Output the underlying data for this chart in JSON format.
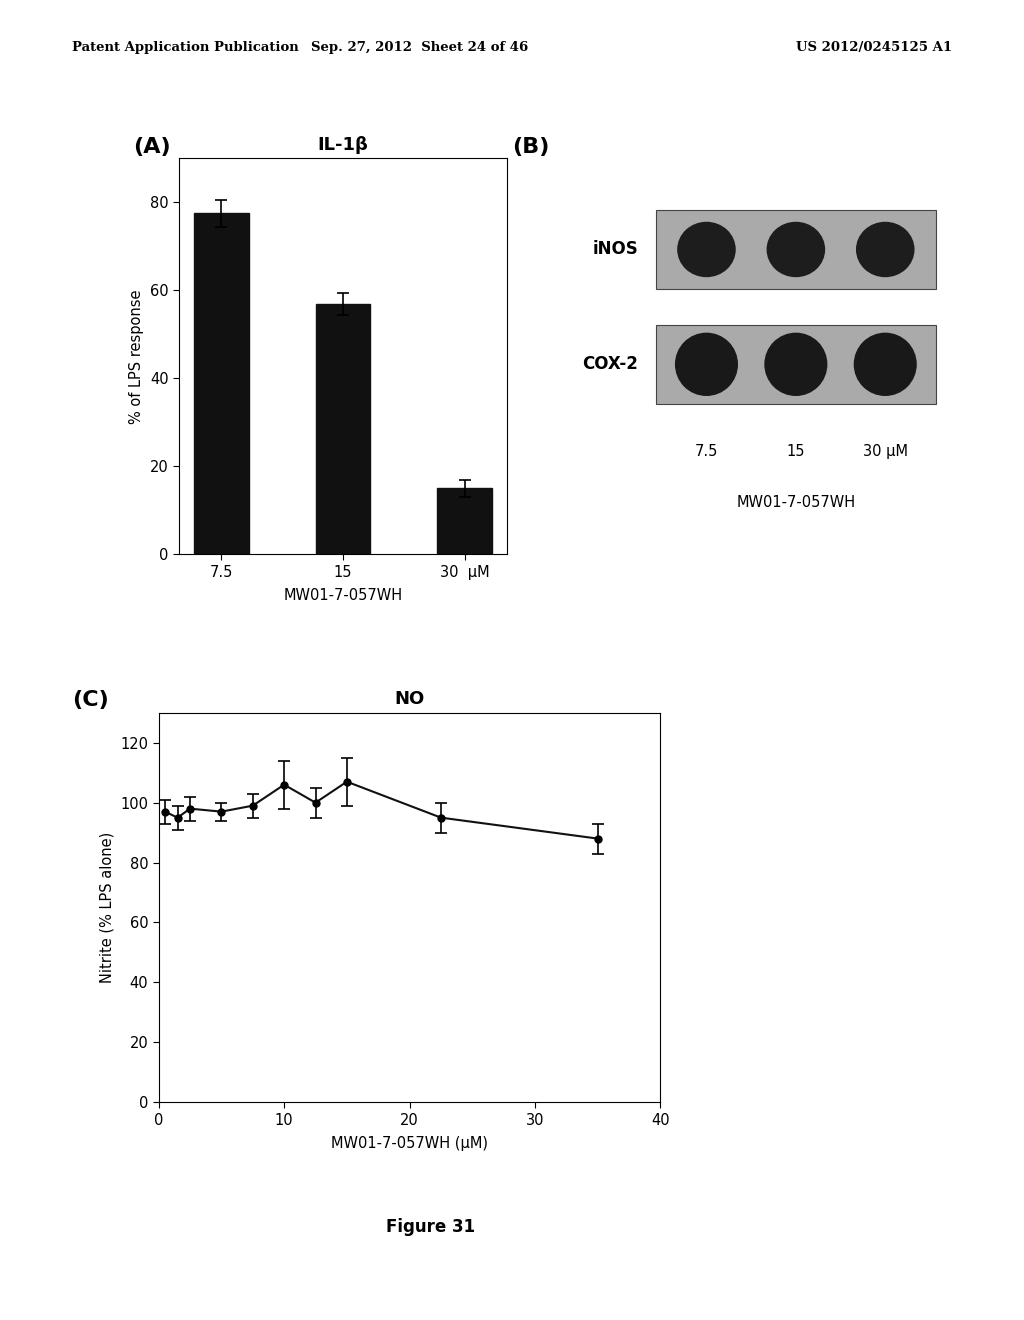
{
  "header_left": "Patent Application Publication",
  "header_mid": "Sep. 27, 2012  Sheet 24 of 46",
  "header_right": "US 2012/0245125 A1",
  "panel_A_title": "IL-1β",
  "panel_A_label": "(A)",
  "panel_A_categories": [
    "7.5",
    "15",
    "30  μM"
  ],
  "panel_A_values": [
    77.5,
    57.0,
    15.0
  ],
  "panel_A_errors": [
    3.0,
    2.5,
    2.0
  ],
  "panel_A_ylabel": "% of LPS response",
  "panel_A_xlabel": "MW01-7-057WH",
  "panel_A_ylim": [
    0,
    90
  ],
  "panel_A_yticks": [
    0,
    20,
    40,
    60,
    80
  ],
  "panel_B_label": "(B)",
  "panel_B_inos_label": "iNOS",
  "panel_B_cox2_label": "COX-2",
  "panel_B_xlabel": "MW01-7-057WH",
  "panel_B_xticks": [
    "7.5",
    "15",
    "30 μM"
  ],
  "panel_C_title": "NO",
  "panel_C_label": "(C)",
  "panel_C_x": [
    0.5,
    1.5,
    2.5,
    5.0,
    7.5,
    10.0,
    12.5,
    15.0,
    22.5,
    35.0
  ],
  "panel_C_y": [
    97,
    95,
    98,
    97,
    99,
    106,
    100,
    107,
    95,
    88
  ],
  "panel_C_errors": [
    4,
    4,
    4,
    3,
    4,
    8,
    5,
    8,
    5,
    5
  ],
  "panel_C_ylabel": "Nitrite (% LPS alone)",
  "panel_C_xlabel": "MW01-7-057WH (μM)",
  "panel_C_xlim": [
    0,
    40
  ],
  "panel_C_ylim": [
    0,
    130
  ],
  "panel_C_yticks": [
    0,
    20,
    40,
    60,
    80,
    100,
    120
  ],
  "panel_C_xticks": [
    0,
    10,
    20,
    30,
    40
  ],
  "figure_label": "Figure 31",
  "bg_color": "#ffffff",
  "bar_color": "#111111",
  "line_color": "#111111"
}
